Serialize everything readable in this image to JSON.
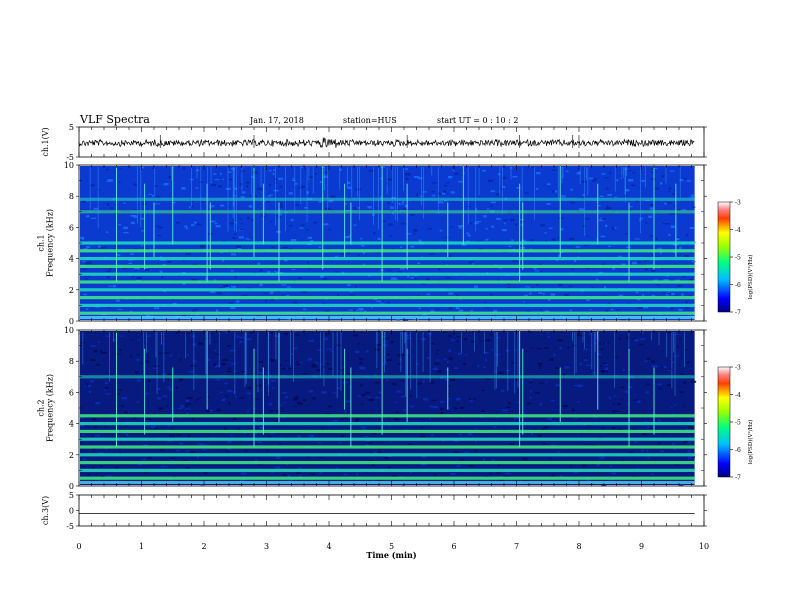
{
  "header": {
    "title": "VLF Spectra",
    "date": "Jan. 17, 2018",
    "station": "station=HUS",
    "start_time": "start UT =  0 : 10 : 2"
  },
  "chart_data": [
    {
      "type": "line",
      "panel": "waveform-ch1",
      "ylabel": "ch.1(V)",
      "ylim": [
        -5,
        5
      ],
      "yticks": [
        "5",
        "-5"
      ],
      "xlim": [
        0,
        10
      ],
      "data_end": 9.85,
      "trace": "noisy waveform around 0 V, amplitude approx ±0.5 V, burst near t=4 min"
    },
    {
      "type": "heatmap",
      "panel": "spectrogram-ch1",
      "ylabel": "ch.1\nFrequency (kHz)",
      "ylim": [
        0,
        10
      ],
      "yticks": [
        "0",
        "2",
        "4",
        "6",
        "8",
        "10"
      ],
      "xlim": [
        0,
        10
      ],
      "data_end": 9.85,
      "colorbar": {
        "label": "log(PSD)(V²/Hz)",
        "range": [
          -7,
          -3
        ],
        "ticks": [
          "-3",
          "-4",
          "-5",
          "-6",
          "-7"
        ]
      },
      "horizontal_bands_khz": [
        0.5,
        1.0,
        1.5,
        2.0,
        2.5,
        3.0,
        3.5,
        4.0,
        4.5,
        5.0,
        7.0,
        7.8
      ],
      "vertical_spike_times_min": [
        0.6,
        1.05,
        1.2,
        1.5,
        2.05,
        2.1,
        2.8,
        2.95,
        3.2,
        3.9,
        4.25,
        4.35,
        4.85,
        5.25,
        5.9,
        6.15,
        7.05,
        7.1,
        7.7,
        8.3,
        8.8,
        9.2,
        9.55
      ]
    },
    {
      "type": "heatmap",
      "panel": "spectrogram-ch2",
      "ylabel": "ch.2\nFrequency (kHz)",
      "ylim": [
        0,
        10
      ],
      "yticks": [
        "0",
        "2",
        "4",
        "6",
        "8",
        "10"
      ],
      "xlim": [
        0,
        10
      ],
      "data_end": 9.85,
      "colorbar": {
        "label": "log(PSD)(V²/Hz)",
        "range": [
          -7,
          -3
        ],
        "ticks": [
          "-3",
          "-4",
          "-5",
          "-6",
          "-7"
        ]
      },
      "horizontal_bands_khz": [
        0.5,
        1.0,
        1.5,
        2.0,
        2.5,
        3.0,
        3.5,
        4.0,
        4.5,
        7.0
      ],
      "vertical_spike_times_min": [
        0.6,
        1.05,
        1.5,
        2.05,
        2.8,
        2.95,
        3.2,
        4.25,
        4.35,
        4.85,
        5.25,
        5.9,
        7.05,
        7.1,
        7.7,
        8.3,
        8.8,
        9.2
      ]
    },
    {
      "type": "line",
      "panel": "waveform-ch3",
      "ylabel": "ch.3(V)",
      "ylim": [
        -5,
        5
      ],
      "yticks": [
        "5",
        "0",
        "-5"
      ],
      "xlim": [
        0,
        10
      ],
      "data_end": 9.85,
      "trace": "flat at approx -1 V"
    }
  ],
  "xaxis": {
    "label": "Time (min)",
    "ticks": [
      "0",
      "1",
      "2",
      "3",
      "4",
      "5",
      "6",
      "7",
      "8",
      "9",
      "10"
    ]
  },
  "colors": {
    "band_cyan": "#20e0c0",
    "band_green": "#40f080",
    "background_ch1": "#0a3ad0",
    "background_ch2": "#061a80",
    "spike": "#60f0d0"
  }
}
